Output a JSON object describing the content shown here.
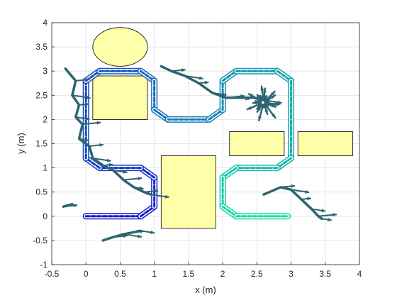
{
  "chart_data": {
    "type": "line",
    "title": "",
    "xlabel": "x (m)",
    "ylabel": "y (m)",
    "xlim": [
      -0.5,
      4
    ],
    "ylim": [
      -1,
      4
    ],
    "xticks": [
      "-0.5",
      "0",
      "0.5",
      "1",
      "1.5",
      "2",
      "2.5",
      "3",
      "3.5",
      "4"
    ],
    "yticks": [
      "-1",
      "-0.5",
      "0",
      "0.5",
      "1",
      "1.5",
      "2",
      "2.5",
      "3",
      "3.5",
      "4"
    ],
    "grid": true,
    "obstacles": [
      {
        "shape": "ellipse",
        "center": [
          0.5,
          3.5
        ],
        "radius": [
          0.4,
          0.4
        ],
        "color": "#FFFFAA"
      },
      {
        "shape": "rect",
        "x": [
          0.1,
          0.9
        ],
        "y": [
          2.0,
          2.9
        ],
        "color": "#FFFFAA"
      },
      {
        "shape": "rect",
        "x": [
          1.1,
          1.9
        ],
        "y": [
          -0.25,
          1.25
        ],
        "color": "#FFFFAA"
      },
      {
        "shape": "rect",
        "x": [
          2.1,
          2.9
        ],
        "y": [
          1.25,
          1.75
        ],
        "color": "#FFFFAA"
      },
      {
        "shape": "rect",
        "x": [
          3.1,
          3.9
        ],
        "y": [
          1.25,
          1.75
        ],
        "color": "#FFFFAA"
      }
    ],
    "path": {
      "description_points": [
        [
          0,
          0
        ],
        [
          0.8,
          0
        ],
        [
          1.0,
          0.2
        ],
        [
          1.0,
          0.8
        ],
        [
          0.8,
          1.0
        ],
        [
          0.2,
          1.0
        ],
        [
          0.0,
          1.2
        ],
        [
          0.0,
          2.8
        ],
        [
          0.2,
          3.0
        ],
        [
          0.8,
          3.0
        ],
        [
          1.0,
          2.8
        ],
        [
          1.0,
          2.2
        ],
        [
          1.2,
          2.0
        ],
        [
          1.8,
          2.0
        ],
        [
          2.0,
          2.2
        ],
        [
          2.0,
          2.8
        ],
        [
          2.2,
          3.0
        ],
        [
          2.8,
          3.0
        ],
        [
          3.0,
          2.8
        ],
        [
          3.0,
          1.2
        ],
        [
          2.8,
          1.0
        ],
        [
          2.2,
          1.0
        ],
        [
          2.0,
          0.8
        ],
        [
          2.0,
          0.2
        ],
        [
          2.2,
          0.0
        ],
        [
          2.95,
          0.0
        ]
      ],
      "color_start": "#1414D2",
      "color_end": "#14E6A0"
    },
    "arrow_color": "#2E6470",
    "arrow_trails": [
      {
        "name": "left-trail",
        "points": [
          [
            -0.3,
            3.05
          ],
          [
            -0.15,
            2.8
          ],
          [
            -0.2,
            2.5
          ],
          [
            -0.1,
            2.3
          ],
          [
            -0.15,
            2.05
          ],
          [
            -0.05,
            1.9
          ],
          [
            -0.1,
            1.6
          ],
          [
            0.05,
            1.45
          ],
          [
            0.1,
            1.2
          ],
          [
            0.25,
            1.05
          ],
          [
            0.4,
            0.95
          ],
          [
            0.55,
            0.75
          ],
          [
            0.7,
            0.6
          ],
          [
            0.85,
            0.5
          ],
          [
            0.95,
            0.45
          ]
        ]
      },
      {
        "name": "top-trail",
        "points": [
          [
            1.1,
            3.1
          ],
          [
            1.25,
            3.0
          ],
          [
            1.45,
            2.9
          ],
          [
            1.65,
            2.75
          ],
          [
            1.85,
            2.55
          ],
          [
            2.05,
            2.45
          ],
          [
            2.25,
            2.45
          ],
          [
            2.45,
            2.45
          ],
          [
            2.6,
            2.4
          ],
          [
            2.7,
            2.3
          ]
        ]
      },
      {
        "name": "bottom-right-trail",
        "points": [
          [
            2.6,
            0.45
          ],
          [
            2.85,
            0.6
          ],
          [
            3.0,
            0.55
          ],
          [
            3.15,
            0.35
          ],
          [
            3.3,
            0.15
          ],
          [
            3.4,
            0.0
          ],
          [
            3.45,
            -0.05
          ]
        ]
      },
      {
        "name": "bottom-trail",
        "points": [
          [
            0.25,
            -0.5
          ],
          [
            0.4,
            -0.43
          ],
          [
            0.55,
            -0.37
          ],
          [
            0.7,
            -0.33
          ],
          [
            0.8,
            -0.3
          ]
        ]
      },
      {
        "name": "far-left-trail",
        "points": [
          [
            -0.2,
            0.25
          ],
          [
            -0.33,
            0.2
          ]
        ]
      }
    ],
    "arrow_cluster": {
      "center": [
        2.6,
        2.35
      ]
    }
  }
}
